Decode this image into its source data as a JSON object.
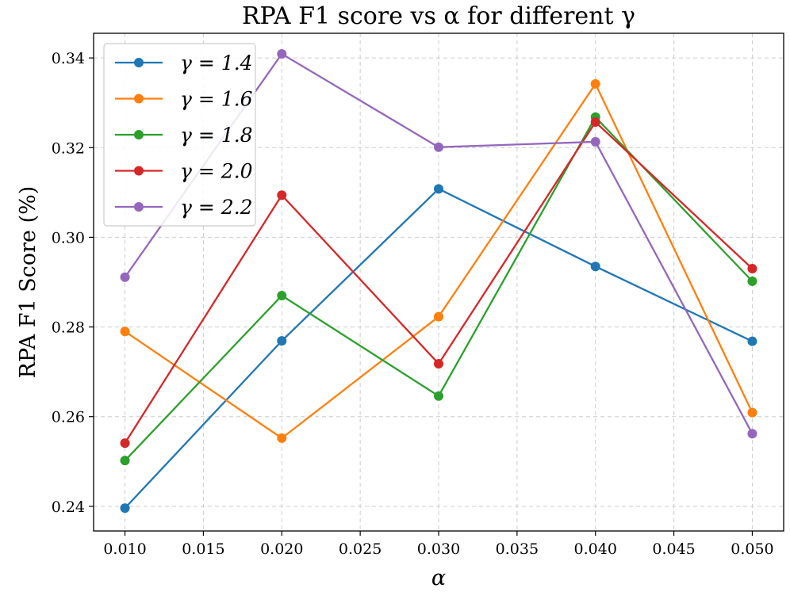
{
  "chart_data": {
    "type": "line",
    "title": "RPA F1 score vs α for different γ",
    "xlabel": "α",
    "ylabel": "RPA F1 Score (%)",
    "x": [
      0.01,
      0.02,
      0.03,
      0.04,
      0.05
    ],
    "xlim": [
      0.008,
      0.052
    ],
    "ylim": [
      0.2345,
      0.3455
    ],
    "xticks": [
      0.01,
      0.015,
      0.02,
      0.025,
      0.03,
      0.035,
      0.04,
      0.045,
      0.05
    ],
    "xtick_labels": [
      "0.010",
      "0.015",
      "0.020",
      "0.025",
      "0.030",
      "0.035",
      "0.040",
      "0.045",
      "0.050"
    ],
    "yticks": [
      0.24,
      0.26,
      0.28,
      0.3,
      0.32,
      0.34
    ],
    "ytick_labels": [
      "0.24",
      "0.26",
      "0.28",
      "0.30",
      "0.32",
      "0.34"
    ],
    "grid": true,
    "legend_position": "top-left",
    "series": [
      {
        "name": "γ = 1.4",
        "color": "#1f77b4",
        "values": [
          0.2396,
          0.2769,
          0.3108,
          0.2935,
          0.2768
        ]
      },
      {
        "name": "γ = 1.6",
        "color": "#ff7f0e",
        "values": [
          0.279,
          0.2552,
          0.2823,
          0.3342,
          0.2609
        ]
      },
      {
        "name": "γ = 1.8",
        "color": "#2ca02c",
        "values": [
          0.2502,
          0.287,
          0.2646,
          0.3268,
          0.2902
        ]
      },
      {
        "name": "γ = 2.0",
        "color": "#d62728",
        "values": [
          0.2541,
          0.3094,
          0.2718,
          0.3257,
          0.293
        ]
      },
      {
        "name": "γ = 2.2",
        "color": "#9467bd",
        "values": [
          0.2911,
          0.3409,
          0.3201,
          0.3213,
          0.2562
        ]
      }
    ]
  }
}
